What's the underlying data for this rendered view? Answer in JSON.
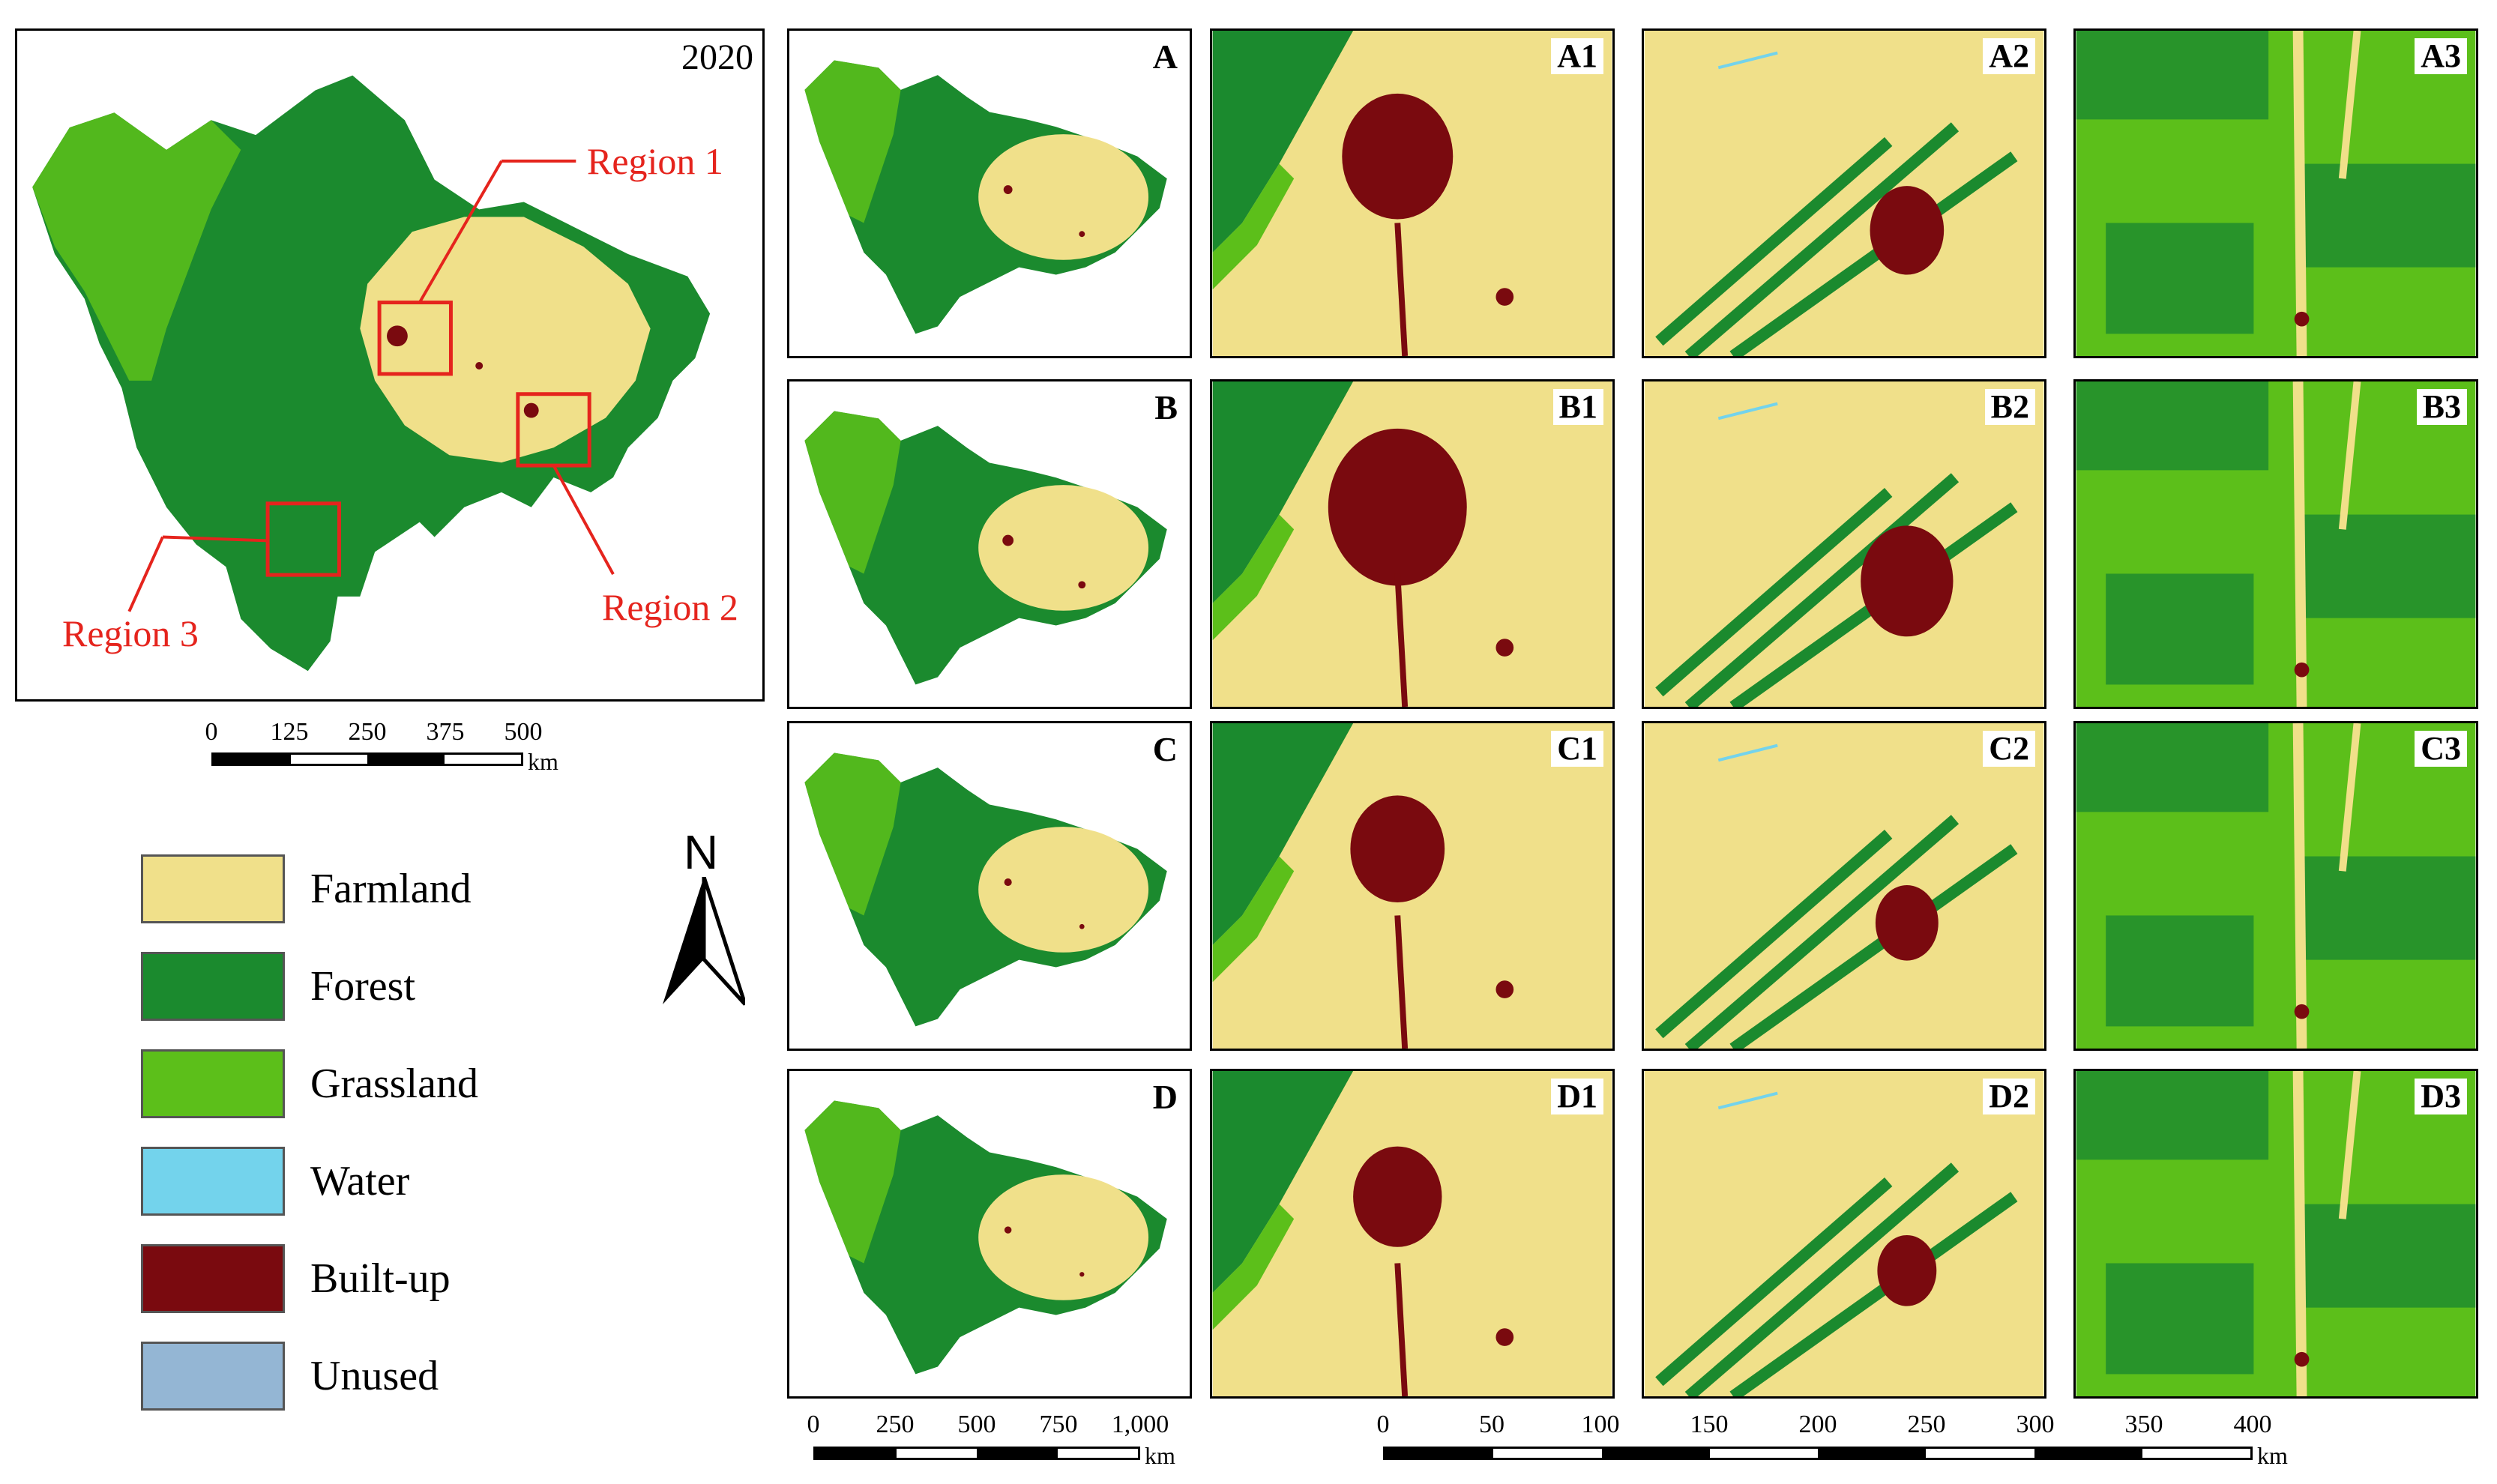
{
  "overview": {
    "year": "2020",
    "regions": [
      "Region 1",
      "Region 2",
      "Region 3"
    ],
    "scale": {
      "ticks": [
        "0",
        "125",
        "250",
        "375",
        "500"
      ],
      "unit": "km"
    }
  },
  "legend": [
    {
      "label": "Farmland",
      "color": "#f0e08a"
    },
    {
      "label": "Forest",
      "color": "#1b8a2e"
    },
    {
      "label": "Grassland",
      "color": "#5cbf1a"
    },
    {
      "label": "Water",
      "color": "#73d3ec"
    },
    {
      "label": "Built-up",
      "color": "#7a0a0f"
    },
    {
      "label": "Unused",
      "color": "#94b6d4"
    }
  ],
  "north_label": "N",
  "scenarios": [
    "A",
    "B",
    "C",
    "D"
  ],
  "region_panels": {
    "A": [
      "A1",
      "A2",
      "A3"
    ],
    "B": [
      "B1",
      "B2",
      "B3"
    ],
    "C": [
      "C1",
      "C2",
      "C3"
    ],
    "D": [
      "D1",
      "D2",
      "D3"
    ]
  },
  "scale_small": {
    "ticks": [
      "0",
      "250",
      "500",
      "750",
      "1,000"
    ],
    "unit": "km"
  },
  "scale_large": {
    "ticks": [
      "0",
      "50",
      "100",
      "150",
      "200",
      "250",
      "300",
      "350",
      "400"
    ],
    "unit": "km"
  }
}
